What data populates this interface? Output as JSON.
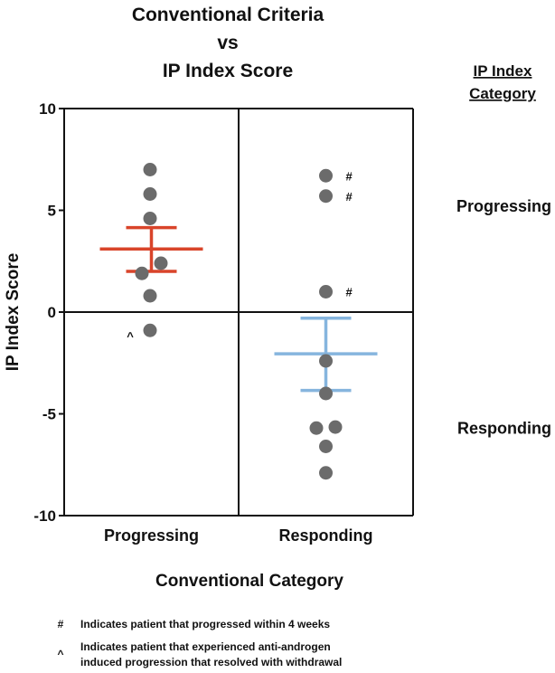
{
  "chart_data": {
    "type": "scatter",
    "title_lines": [
      "Conventional Criteria",
      "vs",
      "IP Index Score"
    ],
    "xlabel": "Conventional Category",
    "ylabel": "IP Index Score",
    "categories": [
      "Progressing",
      "Responding"
    ],
    "ylim": [
      -10,
      10
    ],
    "yticks": [
      10,
      5,
      0,
      -5,
      -10
    ],
    "grid": false,
    "right_header_lines": [
      "IP Index",
      "Category"
    ],
    "right_labels": [
      {
        "text": "Progressing",
        "y": 5.2
      },
      {
        "text": "Responding",
        "y": -5.7
      }
    ],
    "series": [
      {
        "category": "Progressing",
        "color": "#d9442a",
        "mean": 3.1,
        "error_low": 2.0,
        "error_high": 4.15,
        "points": [
          {
            "x": -0.05,
            "y": 7.0,
            "marker": ""
          },
          {
            "x": -0.05,
            "y": 5.8,
            "marker": ""
          },
          {
            "x": -0.05,
            "y": 4.6,
            "marker": ""
          },
          {
            "x": 0.35,
            "y": 2.4,
            "marker": ""
          },
          {
            "x": -0.35,
            "y": 1.9,
            "marker": ""
          },
          {
            "x": -0.05,
            "y": 0.8,
            "marker": ""
          },
          {
            "x": -0.05,
            "y": -0.9,
            "marker": "^"
          }
        ]
      },
      {
        "category": "Responding",
        "color": "#86b5de",
        "mean": -2.05,
        "error_low": -3.85,
        "error_high": -0.3,
        "points": [
          {
            "x": 0.0,
            "y": 6.7,
            "marker": "#"
          },
          {
            "x": 0.0,
            "y": 5.7,
            "marker": "#"
          },
          {
            "x": 0.0,
            "y": 1.0,
            "marker": "#"
          },
          {
            "x": 0.0,
            "y": -2.4,
            "marker": ""
          },
          {
            "x": 0.0,
            "y": -4.0,
            "marker": ""
          },
          {
            "x": -0.35,
            "y": -5.7,
            "marker": ""
          },
          {
            "x": 0.35,
            "y": -5.65,
            "marker": ""
          },
          {
            "x": 0.0,
            "y": -6.6,
            "marker": ""
          },
          {
            "x": 0.0,
            "y": -7.9,
            "marker": ""
          }
        ]
      }
    ],
    "point_color": "#6b6b6b",
    "legend": [
      {
        "symbol": "#",
        "lines": [
          "Indicates patient that progressed within 4 weeks"
        ]
      },
      {
        "symbol": "^",
        "lines": [
          "Indicates patient that experienced anti-androgen",
          "induced progression that resolved with withdrawal"
        ]
      }
    ]
  }
}
